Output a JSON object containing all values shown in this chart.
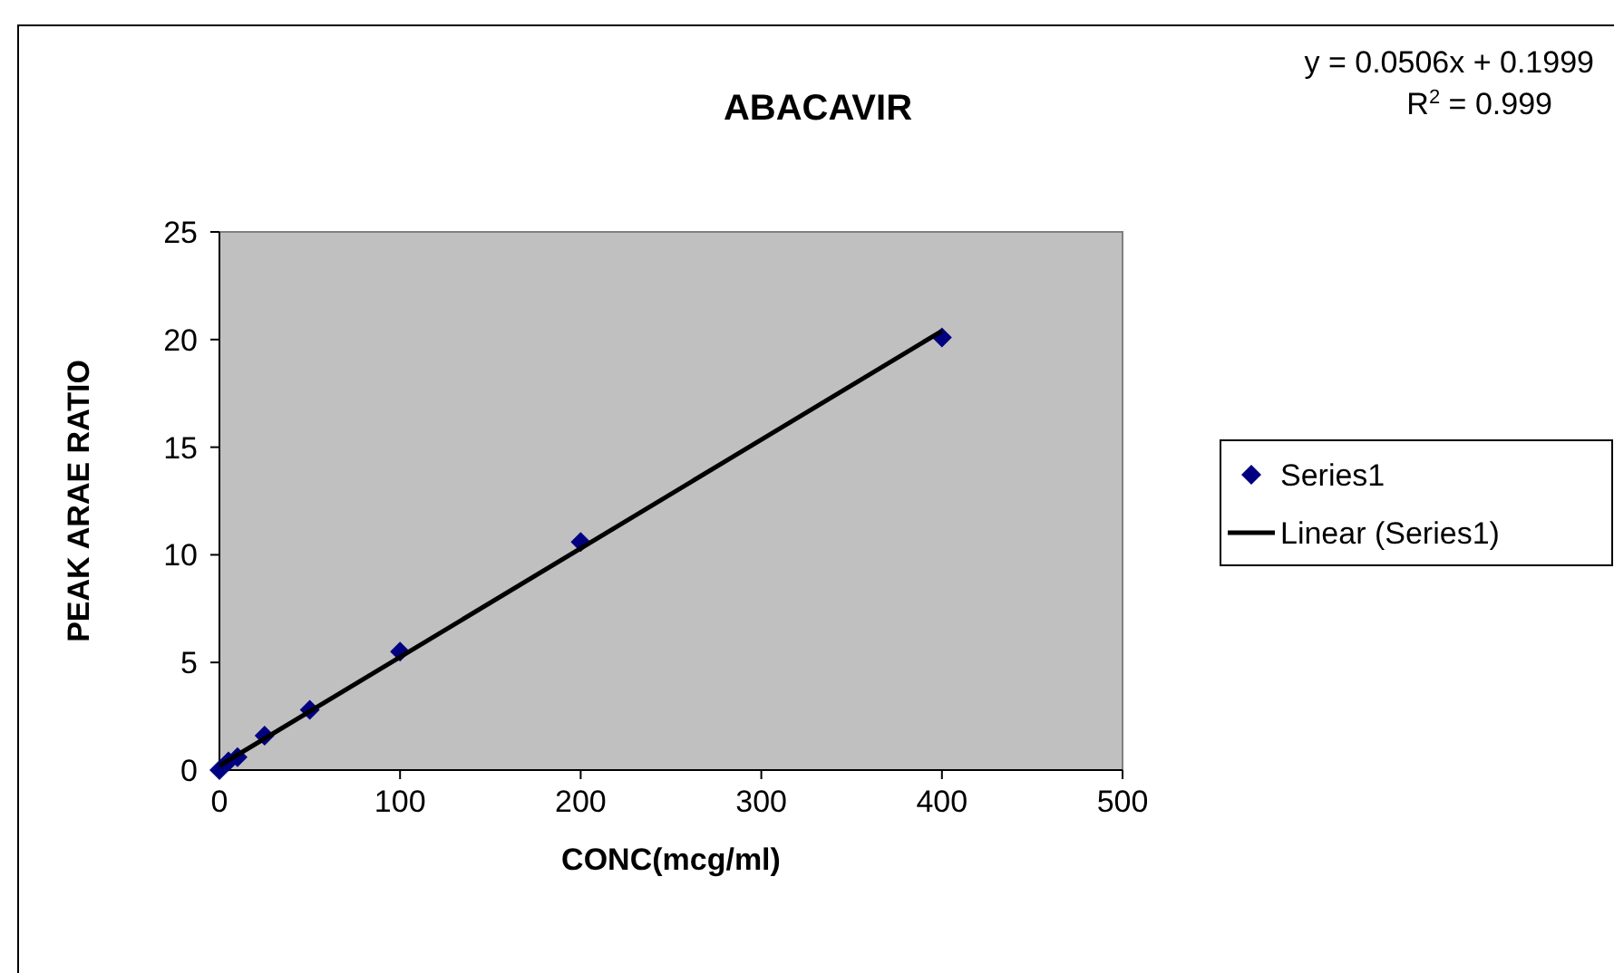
{
  "chart_data": {
    "type": "scatter",
    "title": "ABACAVIR",
    "xlabel": "CONC(mcg/ml)",
    "ylabel": "PEAK ARAE RATIO",
    "annotations": [
      "y = 0.0506x + 0.1999",
      "R$^{2}$ = 0.999"
    ],
    "xlim": [
      0,
      500
    ],
    "xticks": [
      0,
      100,
      200,
      300,
      400,
      500
    ],
    "ylim": [
      0,
      25
    ],
    "yticks": [
      0,
      5,
      10,
      15,
      20,
      25
    ],
    "grid": false,
    "legend": "right",
    "series": [
      {
        "name": "Series1",
        "marker": "diamond",
        "color": "#000080",
        "x": [
          0,
          5,
          10,
          25,
          50,
          100,
          200,
          400
        ],
        "values": [
          0,
          0.4,
          0.6,
          1.6,
          2.8,
          5.5,
          10.6,
          20.1
        ]
      },
      {
        "name": "Linear (Series1)",
        "type": "line",
        "marker": "none",
        "line_style": "solid",
        "color": "#000000",
        "x": [
          0,
          400
        ],
        "values": [
          0.2,
          20.4
        ]
      }
    ]
  }
}
